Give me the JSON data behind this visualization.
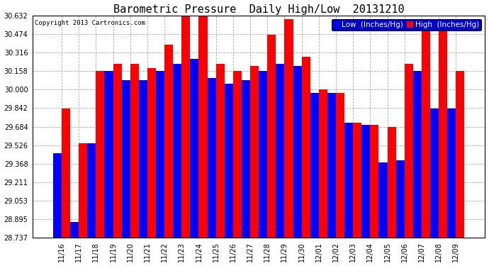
{
  "title": "Barometric Pressure  Daily High/Low  20131210",
  "copyright": "Copyright 2013 Cartronics.com",
  "legend_low": "Low  (Inches/Hg)",
  "legend_high": "High  (Inches/Hg)",
  "dates": [
    "11/16",
    "11/17",
    "11/18",
    "11/19",
    "11/20",
    "11/21",
    "11/22",
    "11/23",
    "11/24",
    "11/25",
    "11/26",
    "11/27",
    "11/28",
    "11/29",
    "11/30",
    "12/01",
    "12/02",
    "12/03",
    "12/04",
    "12/05",
    "12/06",
    "12/07",
    "12/08",
    "12/09"
  ],
  "low_values": [
    29.46,
    28.87,
    29.54,
    30.16,
    30.08,
    30.08,
    30.16,
    30.22,
    30.26,
    30.1,
    30.05,
    30.08,
    30.16,
    30.22,
    30.2,
    29.97,
    29.97,
    29.72,
    29.7,
    29.38,
    29.4,
    30.16,
    29.84,
    29.84
  ],
  "high_values": [
    29.84,
    29.54,
    30.16,
    30.22,
    30.22,
    30.18,
    30.38,
    30.63,
    30.63,
    30.22,
    30.16,
    30.2,
    30.47,
    30.6,
    30.28,
    30.0,
    29.97,
    29.72,
    29.7,
    29.68,
    30.22,
    30.5,
    30.5,
    30.16
  ],
  "ylim_min": 28.737,
  "ylim_max": 30.632,
  "bar_bottom": 28.737,
  "yticks": [
    28.737,
    28.895,
    29.053,
    29.211,
    29.368,
    29.526,
    29.684,
    29.842,
    30.0,
    30.158,
    30.316,
    30.474,
    30.632
  ],
  "low_color": "#0000ff",
  "high_color": "#ff0000",
  "bg_color": "#ffffff",
  "grid_color": "#aaaaaa",
  "title_fontsize": 11,
  "tick_fontsize": 7,
  "legend_fontsize": 7.5
}
